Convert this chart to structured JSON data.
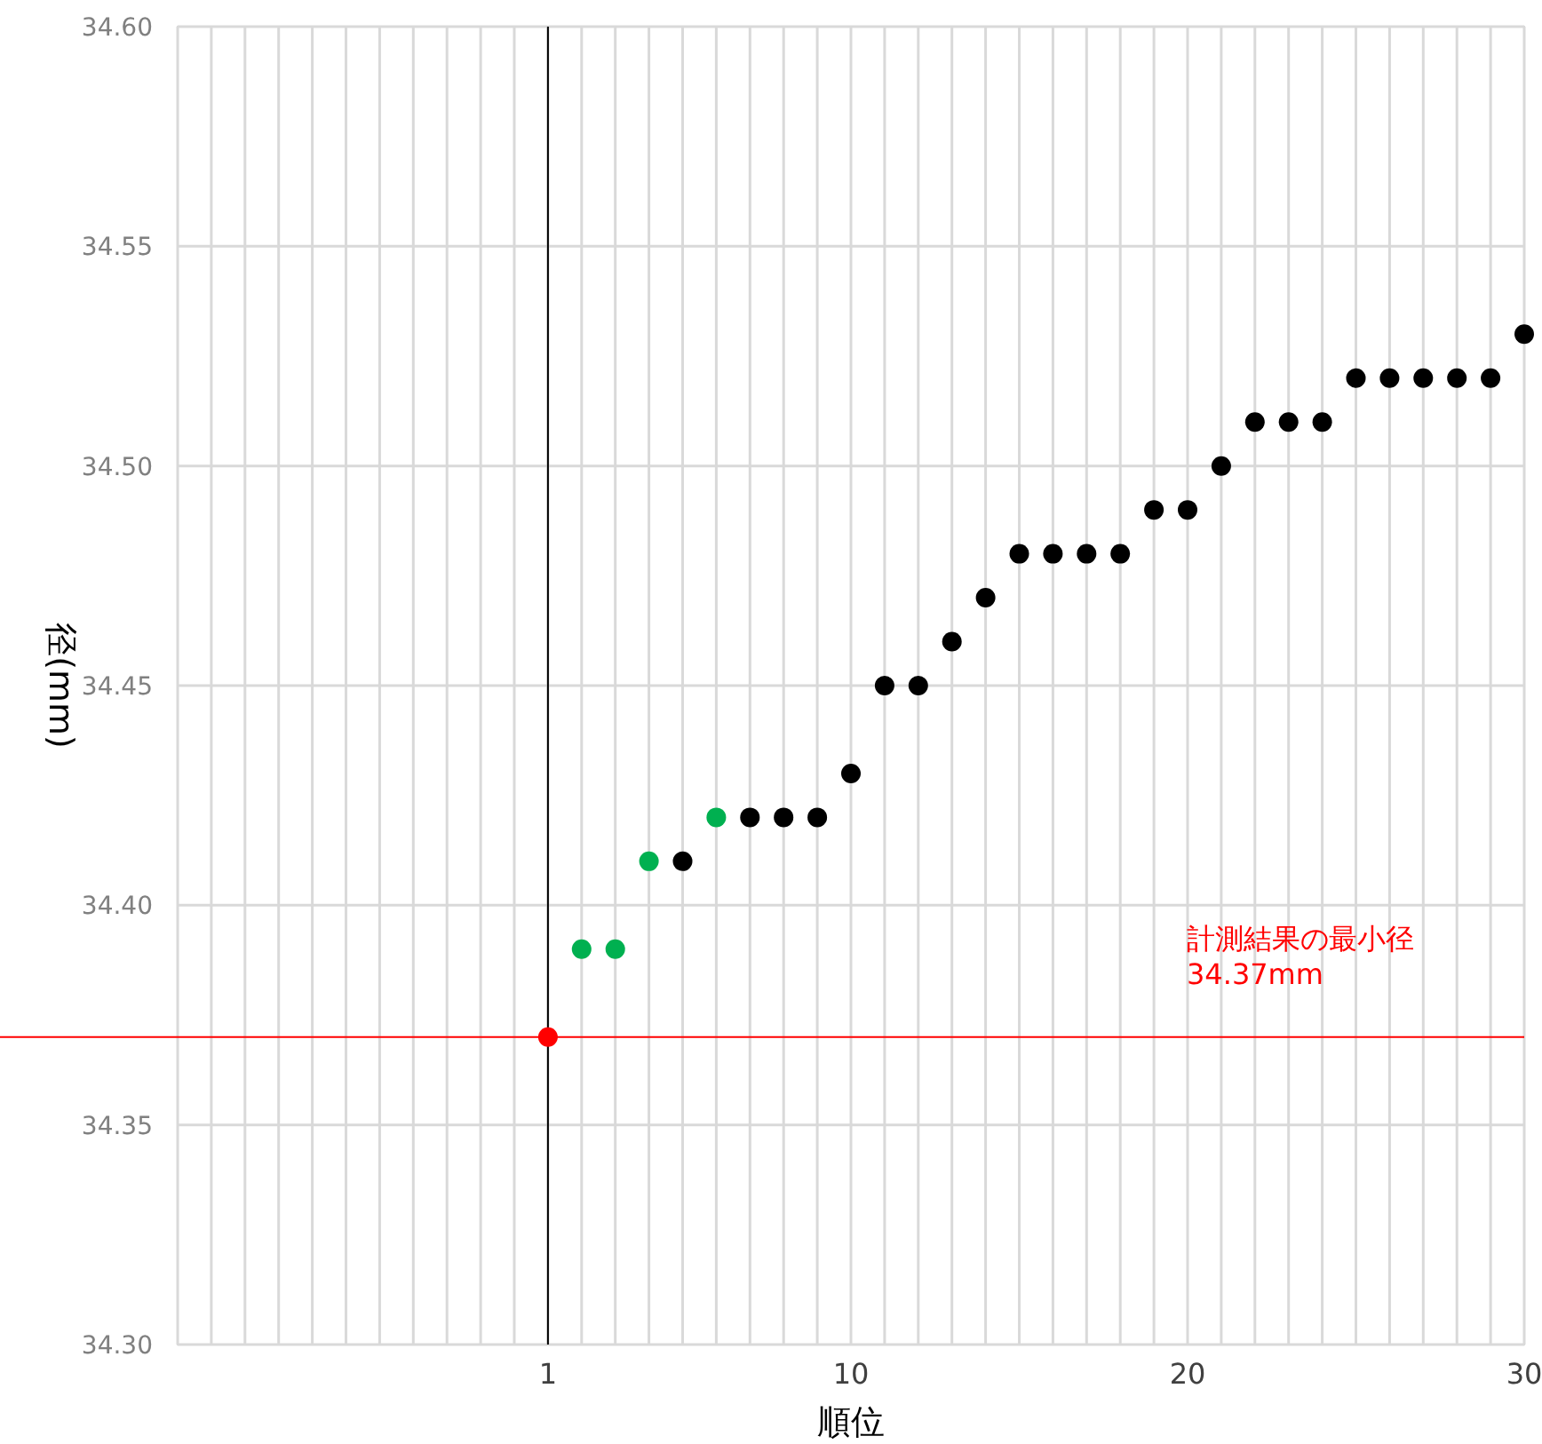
{
  "chart_data": {
    "type": "scatter",
    "xlabel": "順位",
    "ylabel": "径(mm)",
    "xlim": [
      -10,
      30
    ],
    "ylim": [
      34.3,
      34.6
    ],
    "xticks": [
      {
        "value": -10,
        "label": null
      },
      {
        "value": -9,
        "label": null
      },
      {
        "value": -8,
        "label": null
      },
      {
        "value": -7,
        "label": null
      },
      {
        "value": -6,
        "label": null
      },
      {
        "value": -5,
        "label": null
      },
      {
        "value": -4,
        "label": null
      },
      {
        "value": -3,
        "label": null
      },
      {
        "value": -2,
        "label": null
      },
      {
        "value": -1,
        "label": null
      },
      {
        "value": 0,
        "label": null
      },
      1,
      {
        "value": 2,
        "label": null
      },
      {
        "value": 3,
        "label": null
      },
      {
        "value": 4,
        "label": null
      },
      {
        "value": 5,
        "label": null
      },
      {
        "value": 6,
        "label": null
      },
      {
        "value": 7,
        "label": null
      },
      {
        "value": 8,
        "label": null
      },
      {
        "value": 9,
        "label": null
      },
      10,
      {
        "value": 11,
        "label": null
      },
      {
        "value": 12,
        "label": null
      },
      {
        "value": 13,
        "label": null
      },
      {
        "value": 14,
        "label": null
      },
      {
        "value": 15,
        "label": null
      },
      {
        "value": 16,
        "label": null
      },
      {
        "value": 17,
        "label": null
      },
      {
        "value": 18,
        "label": null
      },
      {
        "value": 19,
        "label": null
      },
      20,
      {
        "value": 21,
        "label": null
      },
      {
        "value": 22,
        "label": null
      },
      {
        "value": 23,
        "label": null
      },
      {
        "value": 24,
        "label": null
      },
      {
        "value": 25,
        "label": null
      },
      {
        "value": 26,
        "label": null
      },
      {
        "value": 27,
        "label": null
      },
      {
        "value": 28,
        "label": null
      },
      {
        "value": 29,
        "label": null
      },
      30
    ],
    "yticks": [
      {
        "value": 34.3,
        "label": "34.30"
      },
      {
        "value": 34.35,
        "label": "34.35"
      },
      {
        "value": 34.4,
        "label": "34.40"
      },
      {
        "value": 34.45,
        "label": "34.45"
      },
      {
        "value": 34.5,
        "label": "34.50"
      },
      {
        "value": 34.55,
        "label": "34.55"
      },
      {
        "value": 34.6,
        "label": "34.60"
      }
    ],
    "grid": true,
    "marker": "circle",
    "series": [
      {
        "color": "#ff0000",
        "x": [
          1
        ],
        "values": [
          34.37
        ]
      },
      {
        "color": "#00b050",
        "x": [
          2,
          3,
          4,
          6
        ],
        "values": [
          34.39,
          34.39,
          34.41,
          34.42
        ]
      },
      {
        "color": "#000000",
        "x": [
          5,
          7,
          8,
          9,
          10,
          11,
          12,
          13,
          14,
          15,
          16,
          17,
          18,
          19,
          20,
          21,
          22,
          23,
          24,
          25,
          26,
          27,
          28,
          29,
          30
        ],
        "values": [
          34.41,
          34.42,
          34.42,
          34.42,
          34.43,
          34.45,
          34.45,
          34.46,
          34.47,
          34.48,
          34.48,
          34.48,
          34.48,
          34.49,
          34.49,
          34.5,
          34.51,
          34.51,
          34.51,
          34.52,
          34.52,
          34.52,
          34.52,
          34.52,
          34.53
        ]
      }
    ],
    "ref_lines": [
      {
        "axis": "y",
        "value": 34.37,
        "color": "#ff0000",
        "label": "計測結果の最小径\n34.37mm"
      },
      {
        "axis": "x",
        "value": 1,
        "color": "#000000"
      }
    ]
  }
}
